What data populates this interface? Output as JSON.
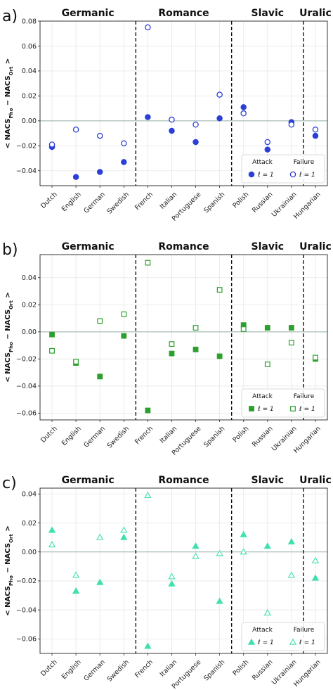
{
  "chart_data": [
    {
      "type": "scatter",
      "panel_letter": "a)",
      "ylabel_main": "< NACS",
      "ylabel_sub1": "Pho",
      "ylabel_minus": " − NACS",
      "ylabel_sub2": "Ort",
      "ylabel_end": " >",
      "ylim": [
        -0.052,
        0.08
      ],
      "y_ticks": [
        -0.04,
        -0.02,
        0.0,
        0.02,
        0.04,
        0.06,
        0.08
      ],
      "y_tick_labels": [
        "−0.04",
        "−0.02",
        "0.00",
        "0.02",
        "0.04",
        "0.06",
        "0.08"
      ],
      "categories": [
        "Dutch",
        "English",
        "German",
        "Swedish",
        "French",
        "Italian",
        "Portuguese",
        "Spanish",
        "Polish",
        "Russian",
        "Ukrainian",
        "Hungarian"
      ],
      "groups": [
        {
          "name": "Germanic",
          "start": 0,
          "end": 3
        },
        {
          "name": "Romance",
          "start": 4,
          "end": 7
        },
        {
          "name": "Slavic",
          "start": 8,
          "end": 10
        },
        {
          "name": "Uralic",
          "start": 11,
          "end": 11
        }
      ],
      "marker": "circle",
      "color": "#2b3fd8",
      "legend": {
        "attack_title": "Attack",
        "failure_title": "Failure",
        "label": "ℓ = 1",
        "placement": "lower-right"
      },
      "series": [
        {
          "name": "Attack",
          "filled": true,
          "values": [
            -0.021,
            -0.045,
            -0.041,
            -0.033,
            0.003,
            -0.008,
            -0.017,
            0.002,
            0.011,
            -0.023,
            -0.001,
            -0.012
          ]
        },
        {
          "name": "Failure",
          "filled": false,
          "values": [
            -0.019,
            -0.007,
            -0.012,
            -0.018,
            0.075,
            0.001,
            -0.003,
            0.021,
            0.006,
            -0.017,
            -0.003,
            -0.007
          ]
        }
      ],
      "grid": true,
      "zero_line": true
    },
    {
      "type": "scatter",
      "panel_letter": "b)",
      "ylabel_main": "< NACS",
      "ylabel_sub1": "Pho",
      "ylabel_minus": " − NACS",
      "ylabel_sub2": "Ort",
      "ylabel_end": " >",
      "ylim": [
        -0.065,
        0.057
      ],
      "y_ticks": [
        -0.06,
        -0.04,
        -0.02,
        0.0,
        0.02,
        0.04
      ],
      "y_tick_labels": [
        "−0.06",
        "−0.04",
        "−0.02",
        "0.00",
        "0.02",
        "0.04"
      ],
      "categories": [
        "Dutch",
        "English",
        "German",
        "Swedish",
        "French",
        "Italian",
        "Portuguese",
        "Spanish",
        "Polish",
        "Russian",
        "Ukrainian",
        "Hungarian"
      ],
      "groups": [
        {
          "name": "Germanic",
          "start": 0,
          "end": 3
        },
        {
          "name": "Romance",
          "start": 4,
          "end": 7
        },
        {
          "name": "Slavic",
          "start": 8,
          "end": 10
        },
        {
          "name": "Uralic",
          "start": 11,
          "end": 11
        }
      ],
      "marker": "square",
      "color": "#2ca02c",
      "legend": {
        "attack_title": "Attack",
        "failure_title": "Failure",
        "label": "ℓ = 1",
        "placement": "lower-right"
      },
      "series": [
        {
          "name": "Attack",
          "filled": true,
          "values": [
            -0.002,
            -0.023,
            -0.033,
            -0.003,
            -0.058,
            -0.016,
            -0.013,
            -0.018,
            0.005,
            0.003,
            0.003,
            -0.02
          ]
        },
        {
          "name": "Failure",
          "filled": false,
          "values": [
            -0.014,
            -0.022,
            0.008,
            0.013,
            0.051,
            -0.009,
            0.003,
            0.031,
            0.002,
            -0.024,
            -0.008,
            -0.019
          ]
        }
      ],
      "grid": true,
      "zero_line": true
    },
    {
      "type": "scatter",
      "panel_letter": "c)",
      "ylabel_main": "< NACS",
      "ylabel_sub1": "Pho",
      "ylabel_minus": " − NACS",
      "ylabel_sub2": "Ort",
      "ylabel_end": " >",
      "ylim": [
        -0.07,
        0.044
      ],
      "y_ticks": [
        -0.06,
        -0.04,
        -0.02,
        0.0,
        0.02,
        0.04
      ],
      "y_tick_labels": [
        "−0.06",
        "−0.04",
        "−0.02",
        "0.00",
        "0.02",
        "0.04"
      ],
      "categories": [
        "Dutch",
        "English",
        "German",
        "Swedish",
        "French",
        "Italian",
        "Portuguese",
        "Spanish",
        "Polish",
        "Russian",
        "Ukrainian",
        "Hungarian"
      ],
      "groups": [
        {
          "name": "Germanic",
          "start": 0,
          "end": 3
        },
        {
          "name": "Romance",
          "start": 4,
          "end": 7
        },
        {
          "name": "Slavic",
          "start": 8,
          "end": 10
        },
        {
          "name": "Uralic",
          "start": 11,
          "end": 11
        }
      ],
      "marker": "triangle",
      "color": "#3fe0b0",
      "legend": {
        "attack_title": "Attack",
        "failure_title": "Failure",
        "label": "ℓ = 1",
        "placement": "lower-right"
      },
      "series": [
        {
          "name": "Attack",
          "filled": true,
          "values": [
            0.015,
            -0.027,
            -0.021,
            0.01,
            -0.065,
            -0.022,
            0.004,
            -0.034,
            0.012,
            0.004,
            0.007,
            -0.018
          ]
        },
        {
          "name": "Failure",
          "filled": false,
          "values": [
            0.005,
            -0.016,
            0.01,
            0.015,
            0.039,
            -0.017,
            -0.003,
            -0.001,
            0.0,
            -0.042,
            -0.016,
            -0.006
          ]
        }
      ],
      "grid": true,
      "zero_line": true
    }
  ]
}
